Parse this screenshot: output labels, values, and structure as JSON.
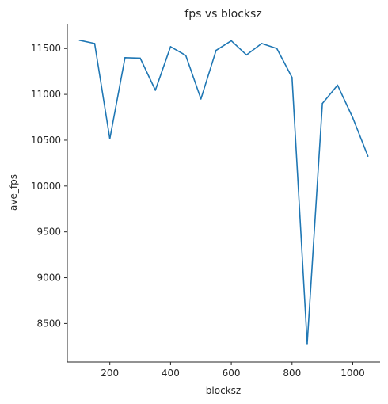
{
  "chart_data": {
    "type": "line",
    "title": "fps vs blocksz",
    "xlabel": "blocksz",
    "ylabel": "ave_fps",
    "xlim": [
      60,
      1090
    ],
    "ylim": [
      8080,
      11770
    ],
    "x_ticks": [
      200,
      400,
      600,
      800,
      1000
    ],
    "y_ticks": [
      8500,
      9000,
      9500,
      10000,
      10500,
      11000,
      11500
    ],
    "grid": false,
    "line_color": "#1f77b4",
    "series": [
      {
        "x": [
          100,
          150,
          200,
          250,
          300,
          350,
          400,
          450,
          500,
          550,
          600,
          650,
          700,
          750,
          800,
          850,
          900,
          950,
          1000,
          1050
        ],
        "values": [
          11590,
          11555,
          10515,
          11400,
          11395,
          11045,
          11520,
          11425,
          10950,
          11480,
          11585,
          11430,
          11555,
          11500,
          11185,
          8280,
          10900,
          11100,
          10745,
          10325
        ]
      }
    ]
  }
}
